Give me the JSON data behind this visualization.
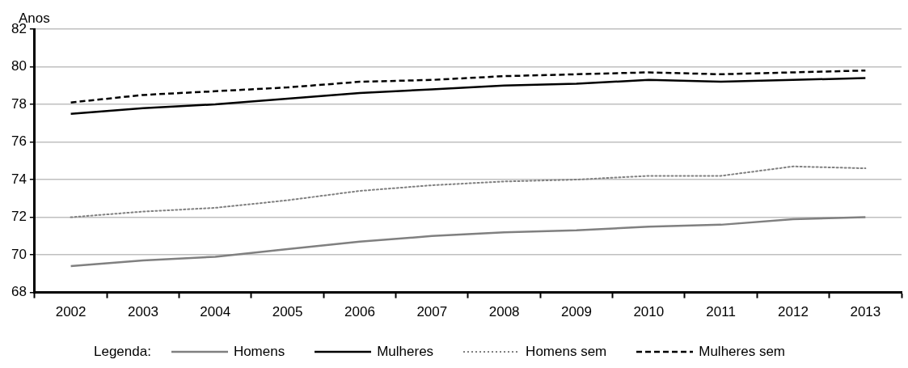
{
  "chart_data": {
    "type": "line",
    "ylabel": "Anos",
    "legend_title": "Legenda:",
    "legend": "bottom",
    "grid": "y",
    "marker": "none",
    "categories": [
      "2002",
      "2003",
      "2004",
      "2005",
      "2006",
      "2007",
      "2008",
      "2009",
      "2010",
      "2011",
      "2012",
      "2013"
    ],
    "ylim": [
      68,
      82
    ],
    "yticks": [
      68,
      70,
      72,
      74,
      76,
      78,
      80,
      82
    ],
    "series": [
      {
        "name": "Homens",
        "color": "#808080",
        "line_style": "solid",
        "values": [
          69.4,
          69.7,
          69.9,
          70.3,
          70.7,
          71.0,
          71.2,
          71.3,
          71.5,
          71.6,
          71.9,
          72.0
        ]
      },
      {
        "name": "Mulheres",
        "color": "#000000",
        "line_style": "solid",
        "values": [
          77.5,
          77.8,
          78.0,
          78.3,
          78.6,
          78.8,
          79.0,
          79.1,
          79.3,
          79.2,
          79.3,
          79.4
        ]
      },
      {
        "name": "Homens sem",
        "color": "#808080",
        "line_style": "dotted",
        "values": [
          72.0,
          72.3,
          72.5,
          72.9,
          73.4,
          73.7,
          73.9,
          74.0,
          74.2,
          74.2,
          74.7,
          74.6
        ]
      },
      {
        "name": "Mulheres sem",
        "color": "#000000",
        "line_style": "dashed",
        "values": [
          78.1,
          78.5,
          78.7,
          78.9,
          79.2,
          79.3,
          79.5,
          79.6,
          79.7,
          79.6,
          79.7,
          79.8
        ]
      }
    ]
  }
}
